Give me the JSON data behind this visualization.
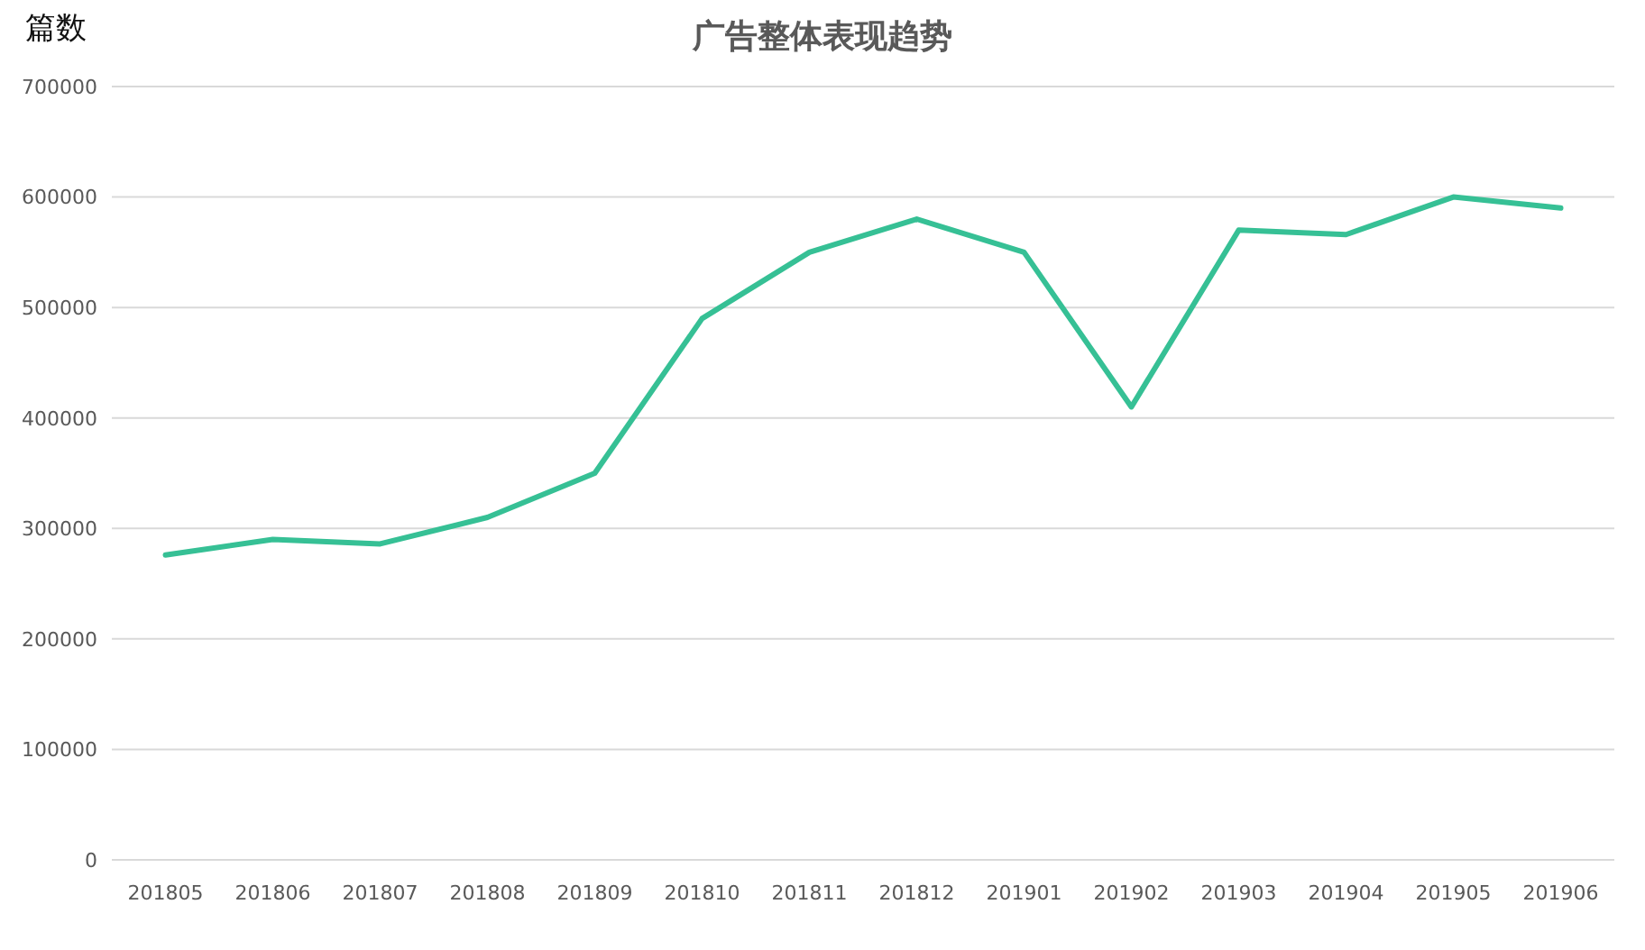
{
  "chart_data": {
    "type": "line",
    "title": "广告整体表现趋势",
    "ylabel": "篇数",
    "categories": [
      "201805",
      "201806",
      "201807",
      "201808",
      "201809",
      "201810",
      "201811",
      "201812",
      "201901",
      "201902",
      "201903",
      "201904",
      "201905",
      "201906"
    ],
    "values": [
      276000,
      290000,
      286000,
      310000,
      350000,
      490000,
      550000,
      580000,
      550000,
      410000,
      570000,
      566000,
      600000,
      590000
    ],
    "color": "#36c095",
    "ylim": [
      0,
      700000
    ],
    "yticks": [
      0,
      100000,
      200000,
      300000,
      400000,
      500000,
      600000,
      700000
    ],
    "grid": "y"
  }
}
